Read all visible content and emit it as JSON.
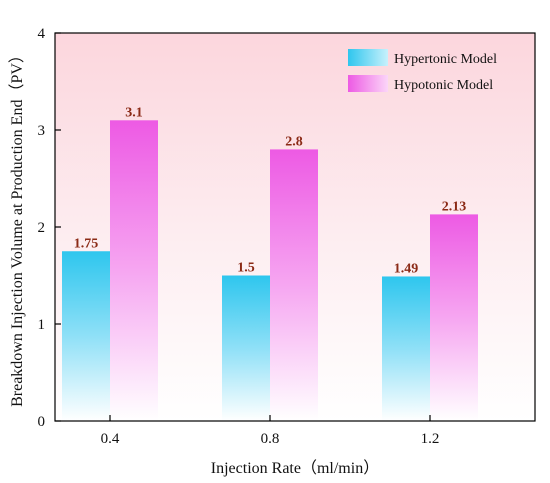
{
  "chart_data": {
    "type": "bar",
    "categories": [
      "0.4",
      "0.8",
      "1.2"
    ],
    "series": [
      {
        "name": "Hypertonic Model",
        "values": [
          1.75,
          1.5,
          1.49
        ],
        "labels": [
          "1.75",
          "1.5",
          "1.49"
        ],
        "color": "#33c7ee"
      },
      {
        "name": "Hypotonic Model",
        "values": [
          3.1,
          2.8,
          2.13
        ],
        "labels": [
          "3.1",
          "2.8",
          "2.13"
        ],
        "color": "#ee5fe6"
      }
    ],
    "xlabel": "Injection Rate（ml/min）",
    "ylabel": "Breakdown Injection Volume at Production End（PV）",
    "ylim": [
      0,
      4
    ],
    "yticks": [
      "0",
      "1",
      "2",
      "3",
      "4"
    ],
    "grid": false,
    "legend_position": "top-right",
    "background_color": "#fde4e8",
    "label_color": "#8b2a16"
  }
}
